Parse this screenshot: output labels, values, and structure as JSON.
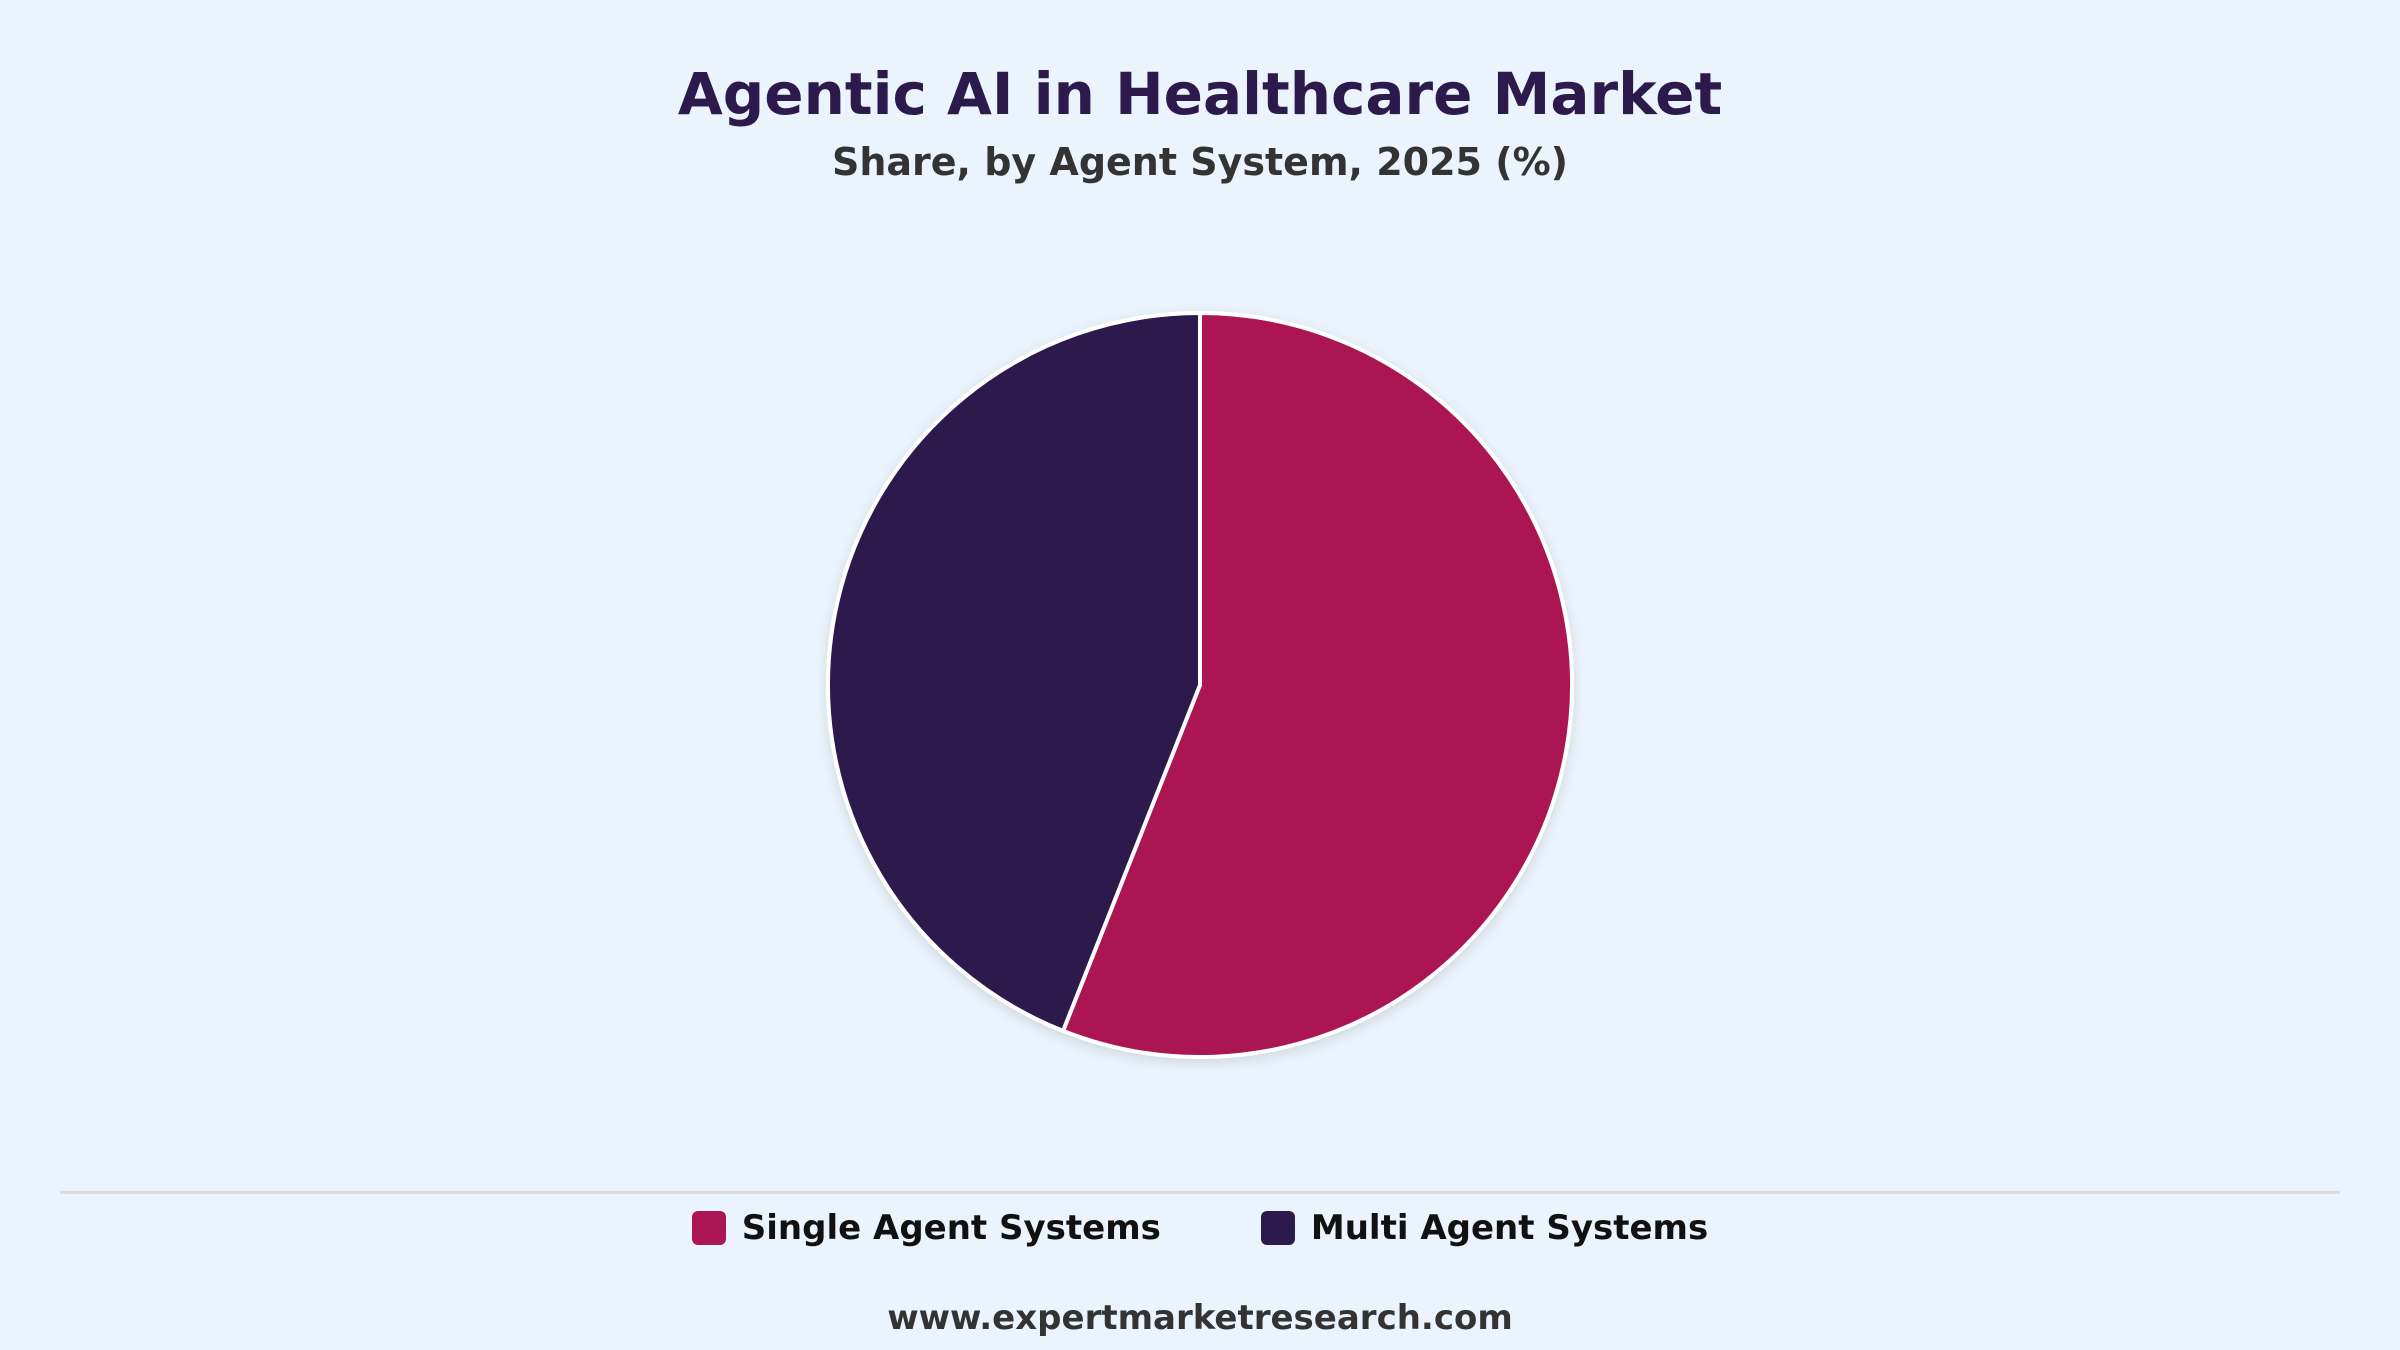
{
  "chart_data": {
    "type": "pie",
    "title": "Agentic AI in Healthcare Market",
    "subtitle": "Share, by Agent System, 2025 (%)",
    "categories": [
      "Single Agent Systems",
      "Multi Agent Systems"
    ],
    "values": [
      56,
      44
    ],
    "colors": [
      "#ab1652",
      "#2d1a4d"
    ],
    "legend": "bottom"
  },
  "footer": {
    "source": "www.expertmarketresearch.com"
  }
}
